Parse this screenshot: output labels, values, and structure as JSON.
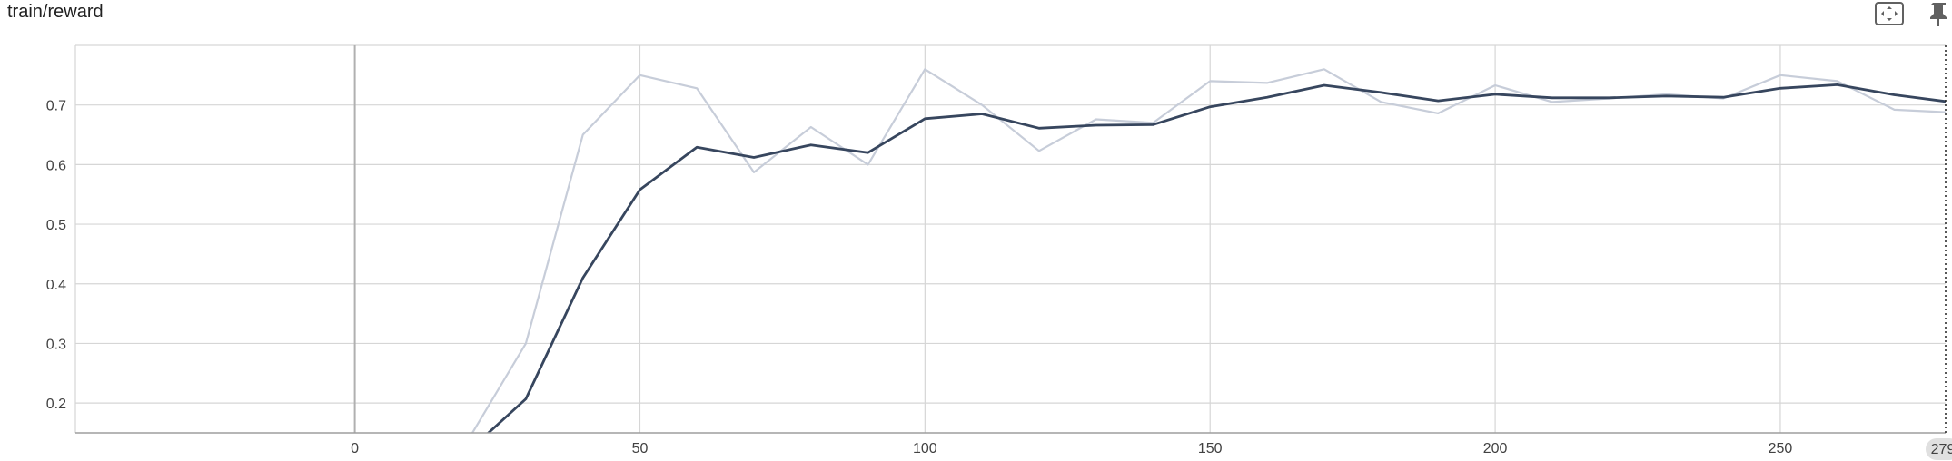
{
  "card": {
    "title": "train/reward",
    "fit_icon": "fit-to-data-icon",
    "pin_icon": "pin-icon"
  },
  "colors": {
    "smoothed": "#37465e",
    "raw": "#c7cdd9",
    "grid": "#d6d6d6",
    "zero_line": "#b0b0b0",
    "axis": "#9e9e9e",
    "cursor_badge": "#e0e0e0"
  },
  "chart_data": {
    "type": "line",
    "title": "train/reward",
    "xlabel": "",
    "ylabel": "",
    "xlim": [
      -49,
      279
    ],
    "ylim": [
      0.15,
      0.8
    ],
    "x_ticks": [
      0,
      50,
      100,
      150,
      200,
      250
    ],
    "y_ticks": [
      0.2,
      0.3,
      0.4,
      0.5,
      0.6,
      0.7
    ],
    "grid": true,
    "cursor_step": 279,
    "cursor_label": "279",
    "series": [
      {
        "role": "raw",
        "x": [
          20,
          30,
          40,
          50,
          60,
          70,
          80,
          90,
          100,
          110,
          120,
          130,
          140,
          150,
          160,
          170,
          180,
          190,
          200,
          210,
          220,
          230,
          240,
          250,
          260,
          270,
          279
        ],
        "values": [
          0.14,
          0.3,
          0.65,
          0.75,
          0.728,
          0.587,
          0.663,
          0.6,
          0.76,
          0.7,
          0.623,
          0.676,
          0.67,
          0.74,
          0.737,
          0.76,
          0.705,
          0.686,
          0.733,
          0.705,
          0.711,
          0.718,
          0.711,
          0.75,
          0.74,
          0.692,
          0.688
        ]
      },
      {
        "role": "smoothed",
        "x": [
          20,
          30,
          40,
          50,
          60,
          70,
          80,
          90,
          100,
          110,
          120,
          130,
          140,
          150,
          160,
          170,
          180,
          190,
          200,
          210,
          220,
          230,
          240,
          250,
          260,
          270,
          279
        ],
        "values": [
          0.12,
          0.207,
          0.41,
          0.558,
          0.629,
          0.612,
          0.633,
          0.62,
          0.677,
          0.685,
          0.661,
          0.666,
          0.667,
          0.697,
          0.713,
          0.733,
          0.721,
          0.707,
          0.718,
          0.712,
          0.712,
          0.715,
          0.713,
          0.728,
          0.734,
          0.717,
          0.706
        ]
      }
    ]
  }
}
